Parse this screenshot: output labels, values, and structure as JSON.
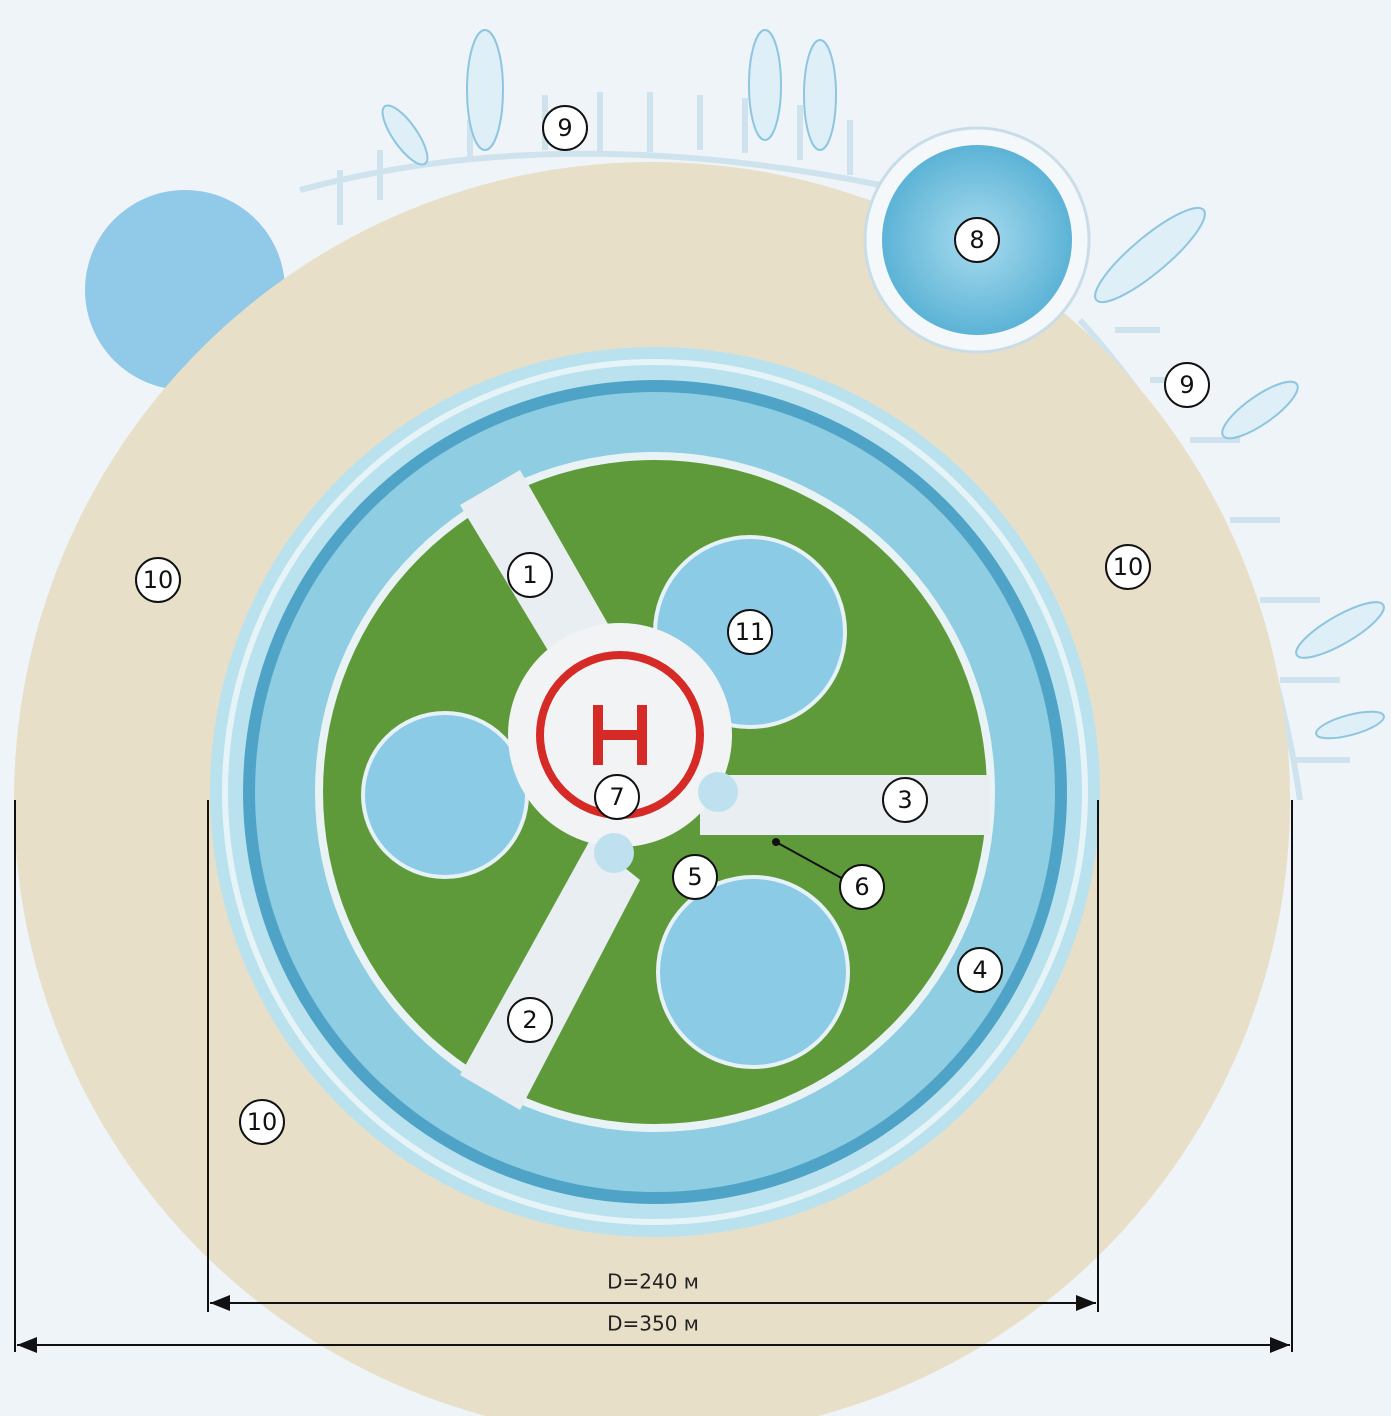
{
  "markers": [
    {
      "label": "1"
    },
    {
      "label": "2"
    },
    {
      "label": "3"
    },
    {
      "label": "4"
    },
    {
      "label": "5"
    },
    {
      "label": "6"
    },
    {
      "label": "7"
    },
    {
      "label": "8"
    },
    {
      "label": "9"
    },
    {
      "label": "9"
    },
    {
      "label": "10"
    },
    {
      "label": "10"
    },
    {
      "label": "10"
    },
    {
      "label": "11"
    }
  ],
  "dimensions": [
    {
      "label": "D=240 м"
    },
    {
      "label": "D=350 м"
    }
  ]
}
